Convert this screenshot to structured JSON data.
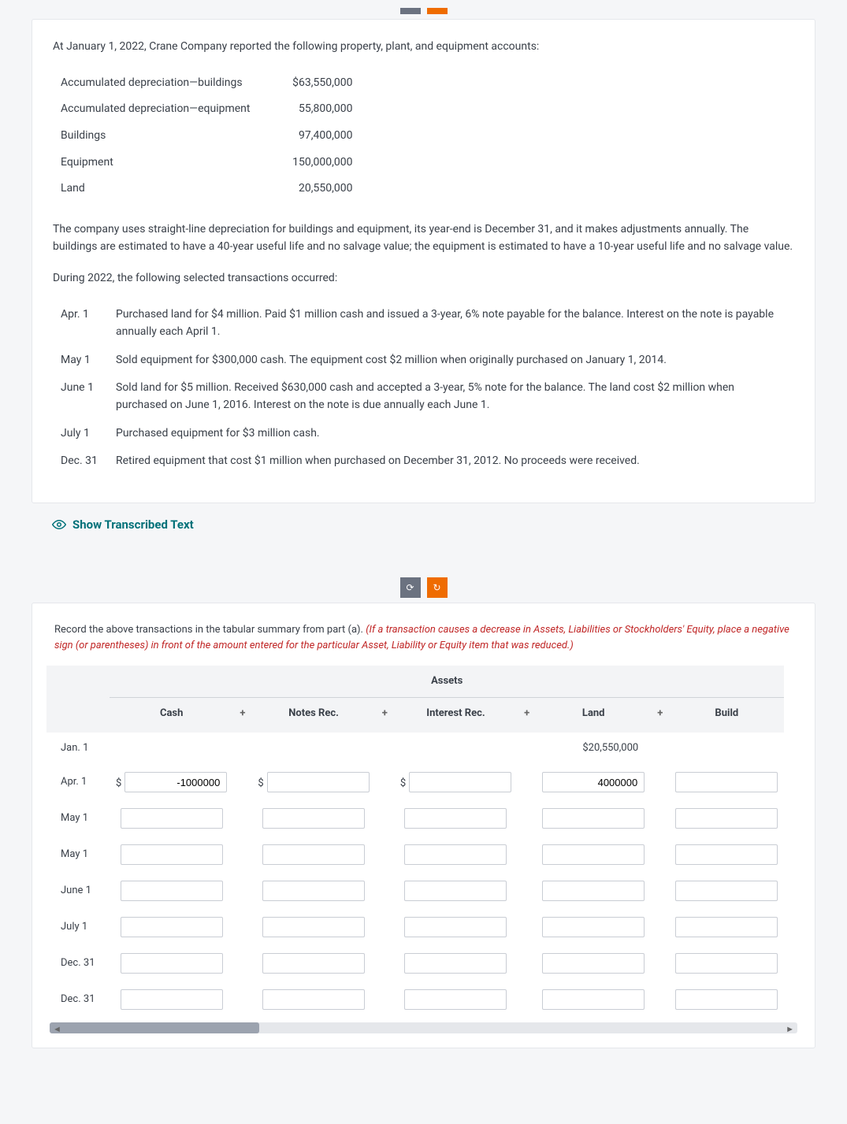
{
  "topButtons": {
    "leftGlyph": "⟳",
    "rightGlyph": "↻"
  },
  "problem": {
    "intro": "At January 1, 2022, Crane Company reported the following property, plant, and equipment accounts:",
    "ppe": [
      {
        "label": "Accumulated depreciation—buildings",
        "value": "$63,550,000"
      },
      {
        "label": "Accumulated depreciation—equipment",
        "value": "55,800,000"
      },
      {
        "label": "Buildings",
        "value": "97,400,000"
      },
      {
        "label": "Equipment",
        "value": "150,000,000"
      },
      {
        "label": "Land",
        "value": "20,550,000"
      }
    ],
    "depreciationNote": "The company uses straight-line depreciation for buildings and equipment, its year-end is December 31, and it makes adjustments annually. The buildings are estimated to have a 40-year useful life and no salvage value; the equipment is estimated to have a 10-year useful life and no salvage value.",
    "during": "During 2022, the following selected transactions occurred:",
    "transactions": [
      {
        "date": "Apr. 1",
        "desc": "Purchased land for $4 million. Paid $1 million cash and issued a 3-year, 6% note payable for the balance. Interest on the note is payable annually each April 1."
      },
      {
        "date": "May 1",
        "desc": "Sold equipment for $300,000 cash. The equipment cost $2 million when originally purchased on January 1, 2014."
      },
      {
        "date": "June 1",
        "desc": "Sold land for $5 million. Received $630,000 cash and accepted a 3-year, 5% note for the balance. The land cost $2 million when purchased on June 1, 2016. Interest on the note is due annually each June 1."
      },
      {
        "date": "July 1",
        "desc": "Purchased equipment for $3 million cash."
      },
      {
        "date": "Dec. 31",
        "desc": "Retired equipment that cost $1 million when purchased on December 31, 2012. No proceeds were received."
      }
    ]
  },
  "showTranscribed": "Show Transcribed Text",
  "part2": {
    "instrBlack": "Record the above transactions in the tabular summary from part (a). ",
    "instrRed": "(If a transaction causes a decrease in Assets, Liabilities or Stockholders' Equity, place a negative sign (or parentheses) in front of the amount entered for the particular Asset, Liability or Equity item that was reduced.)",
    "assetsHeader": "Assets",
    "columns": [
      "Cash",
      "Notes Rec.",
      "Interest Rec.",
      "Land",
      "Build"
    ],
    "plus": "+",
    "rows": [
      {
        "label": "Jan. 1",
        "static": {
          "3": "$20,550,000"
        }
      },
      {
        "label": "Apr. 1",
        "dollars": [
          0,
          1,
          2
        ],
        "values": {
          "0": "-1000000",
          "3": "4000000"
        }
      },
      {
        "label": "May 1"
      },
      {
        "label": "May 1"
      },
      {
        "label": "June 1"
      },
      {
        "label": "July 1"
      },
      {
        "label": "Dec. 31"
      },
      {
        "label": "Dec. 31"
      }
    ]
  }
}
